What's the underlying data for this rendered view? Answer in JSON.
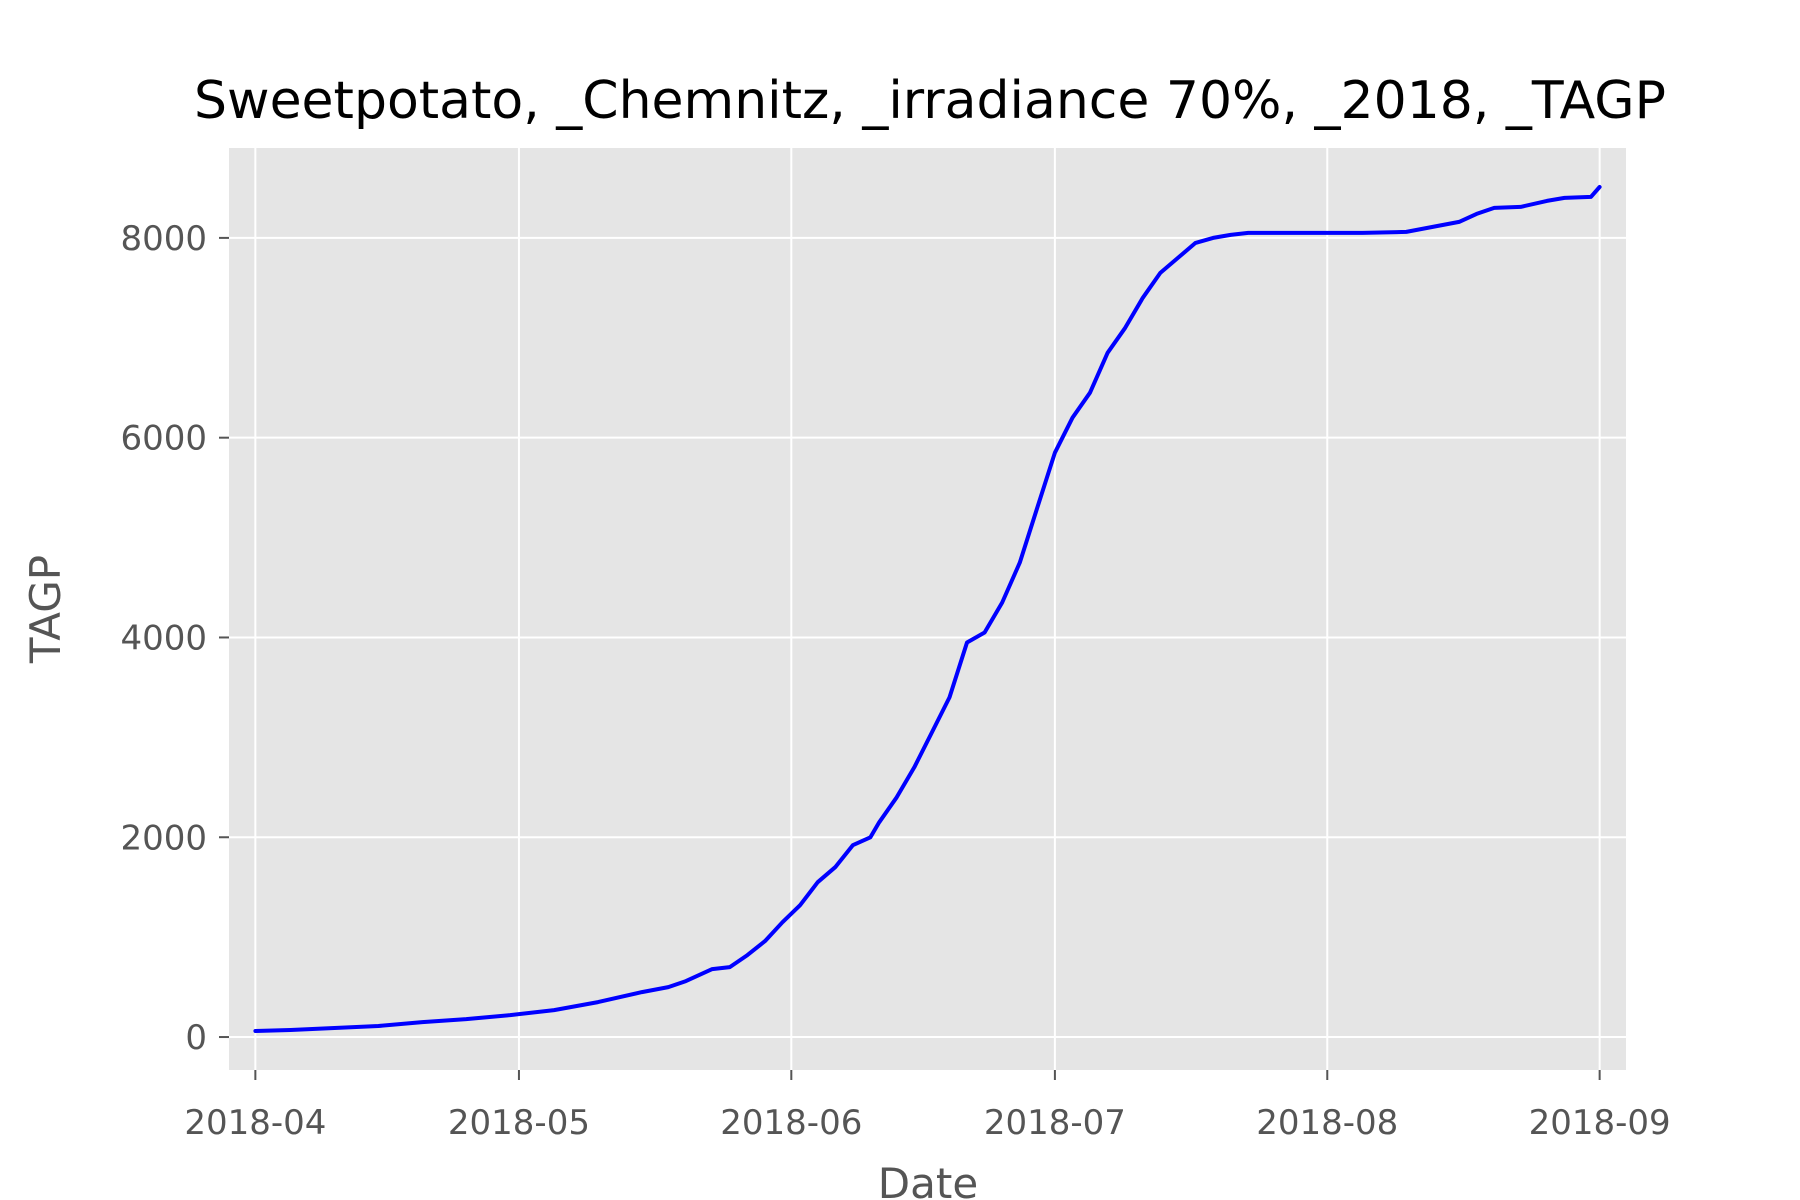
{
  "chart_data": {
    "type": "line",
    "title": "Sweetpotato, _Chemnitz, _irradiance 70%, _2018, _TAGP",
    "xlabel": "Date",
    "ylabel": "TAGP",
    "x_ticks": [
      "2018-04",
      "2018-05",
      "2018-06",
      "2018-07",
      "2018-08",
      "2018-09"
    ],
    "y_ticks": [
      "0",
      "2000",
      "4000",
      "6000",
      "8000"
    ],
    "xlim": [
      "2018-03-29",
      "2018-09-04"
    ],
    "ylim": [
      -330,
      8900
    ],
    "grid": true,
    "colors": {
      "background": "#E5E5E5",
      "grid": "#FFFFFF",
      "line": "#0000FF",
      "tick": "#555555"
    },
    "series": [
      {
        "x": [
          "2018-04-01",
          "2018-04-05",
          "2018-04-10",
          "2018-04-15",
          "2018-04-20",
          "2018-04-25",
          "2018-04-30",
          "2018-05-05",
          "2018-05-10",
          "2018-05-15",
          "2018-05-18",
          "2018-05-20",
          "2018-05-23",
          "2018-05-25",
          "2018-05-27",
          "2018-05-29",
          "2018-05-31",
          "2018-06-02",
          "2018-06-04",
          "2018-06-06",
          "2018-06-08",
          "2018-06-10",
          "2018-06-11",
          "2018-06-13",
          "2018-06-15",
          "2018-06-17",
          "2018-06-19",
          "2018-06-21",
          "2018-06-23",
          "2018-06-25",
          "2018-06-27",
          "2018-06-29",
          "2018-07-01",
          "2018-07-03",
          "2018-07-05",
          "2018-07-07",
          "2018-07-09",
          "2018-07-11",
          "2018-07-13",
          "2018-07-15",
          "2018-07-17",
          "2018-07-19",
          "2018-07-21",
          "2018-07-23",
          "2018-07-25",
          "2018-07-28",
          "2018-07-31",
          "2018-08-05",
          "2018-08-10",
          "2018-08-13",
          "2018-08-16",
          "2018-08-18",
          "2018-08-20",
          "2018-08-23",
          "2018-08-26",
          "2018-08-28",
          "2018-08-31",
          "2018-09-01"
        ],
        "y": [
          60,
          70,
          90,
          110,
          150,
          180,
          220,
          270,
          350,
          450,
          500,
          560,
          680,
          700,
          820,
          960,
          1150,
          1320,
          1550,
          1700,
          1920,
          2000,
          2150,
          2400,
          2700,
          3050,
          3400,
          3950,
          4050,
          4350,
          4750,
          5300,
          5850,
          6200,
          6450,
          6850,
          7100,
          7400,
          7650,
          7800,
          7950,
          8000,
          8030,
          8050,
          8050,
          8050,
          8050,
          8050,
          8060,
          8110,
          8160,
          8240,
          8300,
          8310,
          8370,
          8400,
          8410,
          8510
        ]
      }
    ]
  }
}
